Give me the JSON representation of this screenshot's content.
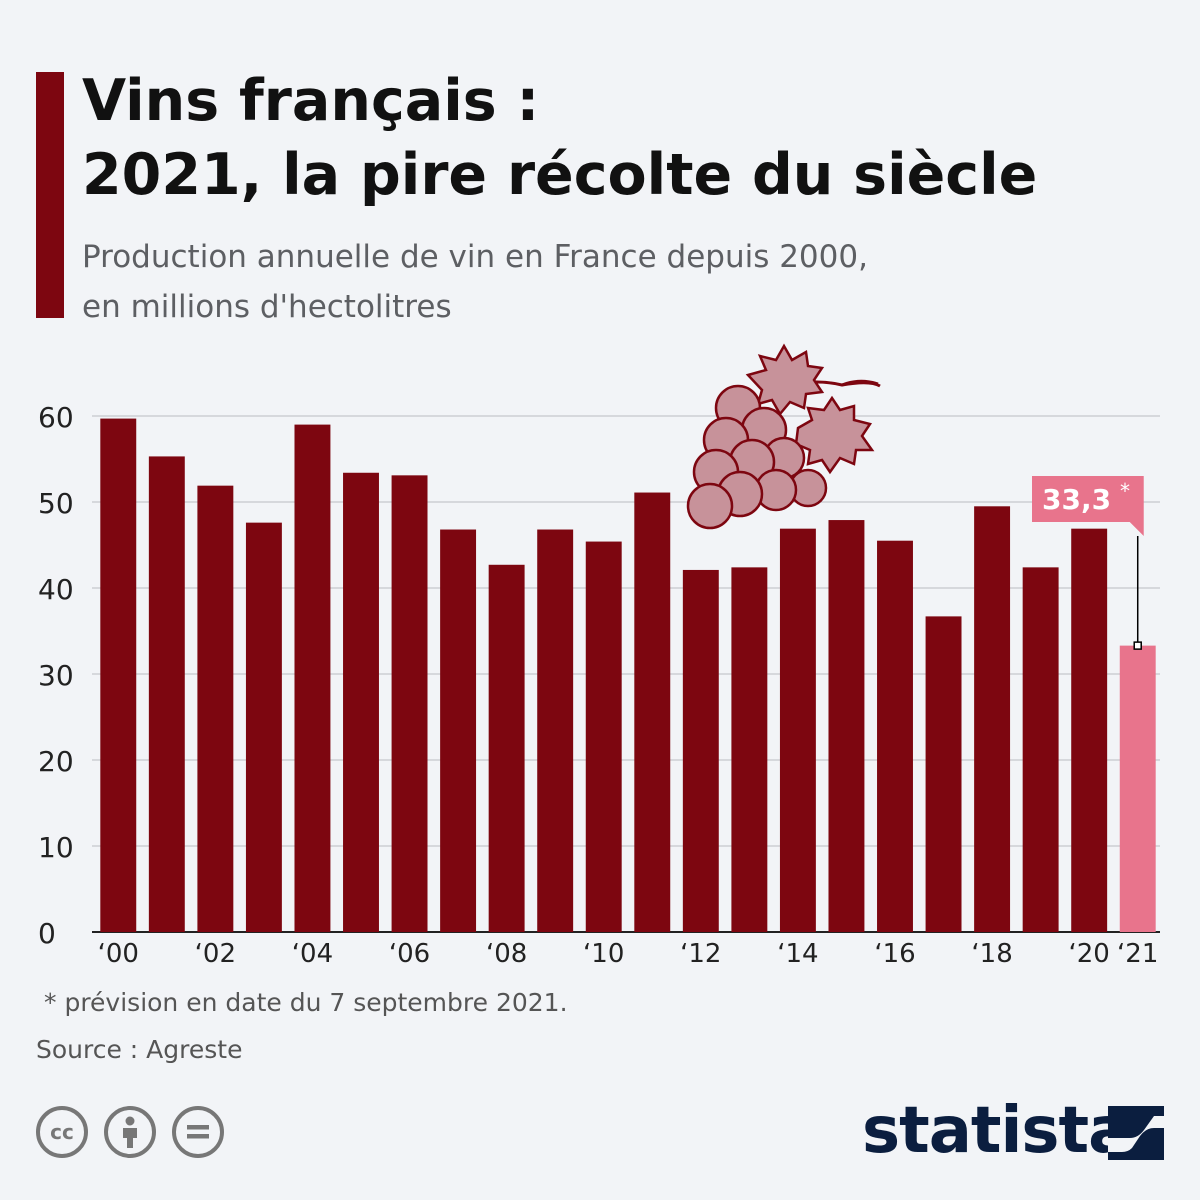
{
  "header": {
    "title_line1": "Vins français :",
    "title_line2": "2021, la pire récolte du siècle",
    "subtitle_line1": "Production annuelle de vin en France depuis 2000,",
    "subtitle_line2": "en millions d'hectolitres"
  },
  "colors": {
    "accent": "#7d0610",
    "bar": "#7d0610",
    "highlight": "#e8748c",
    "grape": "#c7929a"
  },
  "chart_data": {
    "type": "bar",
    "categories": [
      "2000",
      "2001",
      "2002",
      "2003",
      "2004",
      "2005",
      "2006",
      "2007",
      "2008",
      "2009",
      "2010",
      "2011",
      "2012",
      "2013",
      "2014",
      "2015",
      "2016",
      "2017",
      "2018",
      "2019",
      "2020",
      "2021"
    ],
    "tick_labels": [
      "‘00",
      "",
      "‘02",
      "",
      "‘04",
      "",
      "‘06",
      "",
      "‘08",
      "",
      "‘10",
      "",
      "‘12",
      "",
      "‘14",
      "",
      "‘16",
      "",
      "‘18",
      "",
      "‘20",
      "‘21"
    ],
    "values": [
      59.7,
      55.3,
      51.9,
      47.6,
      59.0,
      53.4,
      53.1,
      46.8,
      42.7,
      46.8,
      45.4,
      51.1,
      42.1,
      42.4,
      46.9,
      47.9,
      45.5,
      36.7,
      49.5,
      42.4,
      46.9,
      33.3
    ],
    "highlight_index": 21,
    "highlight_label": "33,3",
    "highlight_marker": "*",
    "ylim": [
      0,
      60
    ],
    "yticks": [
      0,
      10,
      20,
      30,
      40,
      50,
      60
    ],
    "grid": true,
    "title": "",
    "xlabel": "",
    "ylabel": ""
  },
  "footer": {
    "note": "* prévision en date du 7 septembre 2021.",
    "source": "Source : Agreste",
    "brand": "statista",
    "license_icons": [
      "cc-icon",
      "attribution-icon",
      "no-derivatives-icon"
    ],
    "cc_text": "cc"
  }
}
